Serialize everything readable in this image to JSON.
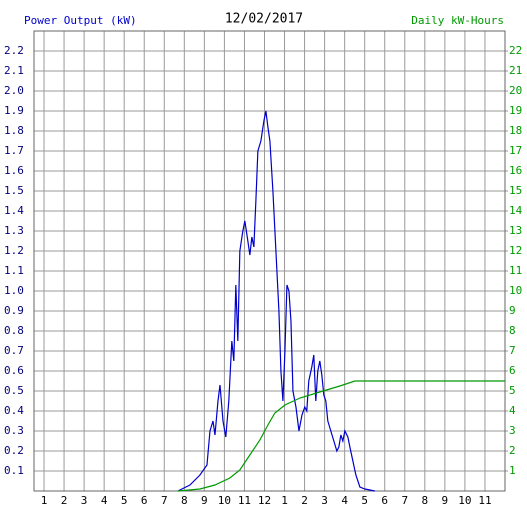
{
  "chart_data": {
    "type": "line",
    "title": "12/02/2017",
    "y_label": "Power Output (kW)",
    "y2_label": "Daily kW-Hours",
    "grid": true,
    "xlim": [
      0.5,
      24
    ],
    "xticks": [
      1,
      2,
      3,
      4,
      5,
      6,
      7,
      8,
      9,
      10,
      11,
      12,
      {
        "value": 13,
        "label": "1"
      },
      {
        "value": 14,
        "label": "2"
      },
      {
        "value": 15,
        "label": "3"
      },
      {
        "value": 16,
        "label": "4"
      },
      {
        "value": 17,
        "label": "5"
      },
      {
        "value": 18,
        "label": "6"
      },
      {
        "value": 19,
        "label": "7"
      },
      {
        "value": 20,
        "label": "8"
      },
      {
        "value": 21,
        "label": "9"
      },
      {
        "value": 22,
        "label": "10"
      },
      {
        "value": 23,
        "label": "11"
      }
    ],
    "ylim": [
      0,
      2.3
    ],
    "yticks": [
      0.1,
      0.2,
      0.3,
      0.4,
      0.5,
      0.6,
      0.7,
      0.8,
      0.9,
      {
        "value": 1,
        "label": "1.0"
      },
      1.1,
      1.2,
      1.3,
      1.4,
      1.5,
      1.6,
      1.7,
      1.8,
      1.9,
      {
        "value": 2,
        "label": "2.0"
      },
      2.1,
      2.2
    ],
    "y2lim": [
      0,
      23
    ],
    "y2ticks": [
      1,
      2,
      3,
      4,
      5,
      6,
      7,
      8,
      9,
      10,
      11,
      12,
      13,
      14,
      15,
      16,
      17,
      18,
      19,
      20,
      21,
      22
    ],
    "series": [
      {
        "name": "Power Output (kW)",
        "color": "#0000cc",
        "x": [
          7.68,
          8.28,
          8.78,
          9.13,
          9.28,
          9.43,
          9.53,
          9.68,
          9.78,
          9.93,
          10.07,
          10.22,
          10.37,
          10.47,
          10.57,
          10.67,
          10.77,
          10.92,
          11.02,
          11.17,
          11.27,
          11.37,
          11.47,
          11.57,
          11.67,
          11.82,
          11.97,
          12.07,
          12.17,
          12.27,
          12.42,
          12.57,
          12.72,
          12.82,
          12.92,
          13.02,
          13.12,
          13.22,
          13.32,
          13.42,
          13.57,
          13.72,
          13.87,
          14.01,
          14.11,
          14.21,
          14.36,
          14.46,
          14.56,
          14.66,
          14.76,
          14.86,
          14.96,
          15.06,
          15.16,
          15.31,
          15.46,
          15.61,
          15.71,
          15.81,
          15.91,
          16.01,
          16.16,
          16.26,
          16.41,
          16.56,
          16.76,
          17.01,
          17.51
        ],
        "values": [
          0,
          0.03,
          0.08,
          0.13,
          0.3,
          0.35,
          0.28,
          0.45,
          0.53,
          0.35,
          0.27,
          0.45,
          0.75,
          0.65,
          1.03,
          0.75,
          1.2,
          1.3,
          1.35,
          1.25,
          1.18,
          1.27,
          1.22,
          1.45,
          1.7,
          1.75,
          1.85,
          1.9,
          1.82,
          1.75,
          1.5,
          1.2,
          0.9,
          0.6,
          0.45,
          0.7,
          1.03,
          1.0,
          0.85,
          0.5,
          0.42,
          0.3,
          0.38,
          0.42,
          0.4,
          0.55,
          0.62,
          0.68,
          0.45,
          0.6,
          0.65,
          0.58,
          0.48,
          0.45,
          0.35,
          0.3,
          0.25,
          0.2,
          0.22,
          0.28,
          0.25,
          0.3,
          0.27,
          0.22,
          0.15,
          0.08,
          0.02,
          0.01,
          0
        ]
      },
      {
        "name": "Daily kW-Hours",
        "color": "#009900",
        "axis": "y2",
        "x": [
          7.68,
          8.78,
          9.53,
          10.27,
          10.77,
          11.27,
          11.77,
          12.17,
          12.52,
          13.02,
          13.77,
          14.76,
          15.76,
          16.51,
          17.01,
          24
        ],
        "values": [
          0,
          0.1,
          0.3,
          0.65,
          1.05,
          1.8,
          2.55,
          3.3,
          3.9,
          4.3,
          4.65,
          4.95,
          5.25,
          5.5,
          5.5,
          5.5
        ]
      }
    ]
  }
}
